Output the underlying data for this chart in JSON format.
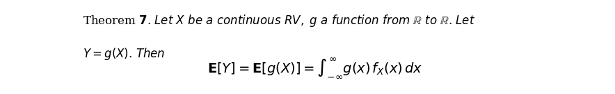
{
  "background_color": "#ffffff",
  "text_color": "#000000",
  "fontsize_body": 12,
  "fontsize_formula": 14
}
